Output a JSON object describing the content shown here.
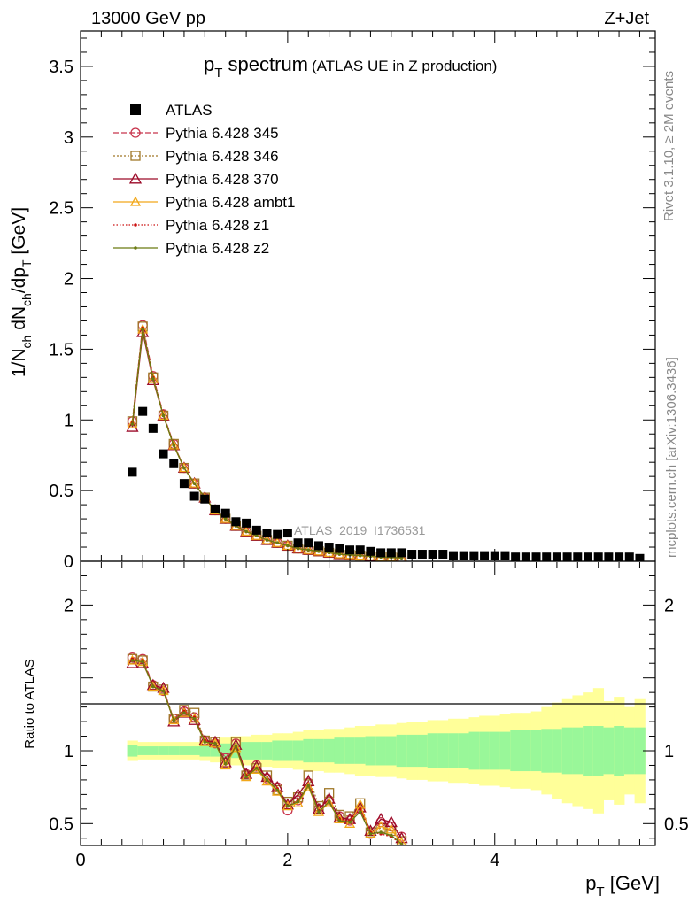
{
  "header": {
    "left": "13000 GeV pp",
    "right": "Z+Jet"
  },
  "title": {
    "main": "p",
    "main_sub": "T",
    "main_rest": " spectrum",
    "suffix": "(ATLAS UE in Z production)"
  },
  "ylabel_top": {
    "a": "1/N",
    "a_sub": "ch",
    "b": " dN",
    "b_sub": "ch",
    "c": "/dp",
    "c_sub": "T",
    "d": " [GeV]"
  },
  "ylabel_bottom": "Ratio to ATLAS",
  "xlabel": {
    "p": "p",
    "sub": "T",
    "rest": " [GeV]"
  },
  "side_text": {
    "rivet": "Rivet 3.1.10, ≥ 2M events",
    "mcplots": "mcplots.cern.ch [arXiv:1306.3436]"
  },
  "analysis_tag": "ATLAS_2019_I1736531",
  "colors": {
    "data": "#000000",
    "band_inner": "#99f799",
    "band_outer": "#ffff99",
    "pythia345": "#c8344c",
    "pythia346": "#a07828",
    "pythia370": "#9c0a28",
    "ambt1": "#f2a81a",
    "z1": "#cc1010",
    "z2": "#6b7a12"
  },
  "chart_data": [
    {
      "type": "scatter",
      "title": "p_T spectrum (ATLAS UE in Z production)",
      "xlabel": "p_T [GeV]",
      "ylabel": "1/N_ch dN_ch/dp_T [GeV]",
      "xlim": [
        0,
        5.55
      ],
      "ylim": [
        0,
        3.75
      ],
      "yticks": [
        "0",
        "0.5",
        "1",
        "1.5",
        "2",
        "2.5",
        "3",
        "3.5"
      ],
      "xticks": [
        "0",
        "2",
        "4"
      ],
      "legend_position": "top-left",
      "x": [
        0.5,
        0.6,
        0.7,
        0.8,
        0.9,
        1.0,
        1.1,
        1.2,
        1.3,
        1.4,
        1.5,
        1.6,
        1.7,
        1.8,
        1.9,
        2.0,
        2.1,
        2.2,
        2.3,
        2.4,
        2.5,
        2.6,
        2.7,
        2.8,
        2.9,
        3.0,
        3.1,
        3.2,
        3.3,
        3.4,
        3.5,
        3.6,
        3.7,
        3.8,
        3.9,
        4.0,
        4.1,
        4.2,
        4.3,
        4.4,
        4.5,
        4.6,
        4.7,
        4.8,
        4.9,
        5.0,
        5.1,
        5.2,
        5.3,
        5.4
      ],
      "series": [
        {
          "name": "ATLAS",
          "style": "data",
          "values": [
            0.63,
            1.06,
            0.94,
            0.76,
            0.69,
            0.55,
            0.46,
            0.44,
            0.37,
            0.34,
            0.28,
            0.27,
            0.22,
            0.2,
            0.19,
            0.2,
            0.13,
            0.13,
            0.11,
            0.1,
            0.09,
            0.08,
            0.08,
            0.07,
            0.06,
            0.06,
            0.06,
            0.05,
            0.05,
            0.05,
            0.05,
            0.04,
            0.04,
            0.04,
            0.04,
            0.04,
            0.04,
            0.03,
            0.03,
            0.03,
            0.03,
            0.03,
            0.03,
            0.03,
            0.03,
            0.03,
            0.03,
            0.03,
            0.03,
            0.02
          ]
        },
        {
          "name": "Pythia 6.428 345",
          "style": "p345",
          "values": [
            0.99,
            1.67,
            1.31,
            1.04,
            0.83,
            0.66,
            0.55,
            0.45,
            0.36,
            0.3,
            0.25,
            0.21,
            0.18,
            0.15,
            0.13,
            0.11,
            0.09,
            0.08,
            0.07,
            0.06,
            0.05,
            0.045,
            0.04,
            0.035,
            0.03,
            0.027,
            0.024
          ]
        },
        {
          "name": "Pythia 6.428 346",
          "style": "p346",
          "values": [
            0.99,
            1.66,
            1.3,
            1.03,
            0.83,
            0.66,
            0.55,
            0.45,
            0.36,
            0.3,
            0.25,
            0.21,
            0.18,
            0.15,
            0.13,
            0.11,
            0.09,
            0.08,
            0.07,
            0.06,
            0.05,
            0.045,
            0.04,
            0.035,
            0.03,
            0.027,
            0.024
          ]
        },
        {
          "name": "Pythia 6.428 370",
          "style": "p370",
          "values": [
            0.95,
            1.62,
            1.28,
            1.03,
            0.82,
            0.66,
            0.55,
            0.45,
            0.36,
            0.3,
            0.25,
            0.21,
            0.18,
            0.15,
            0.13,
            0.11,
            0.09,
            0.08,
            0.07,
            0.06,
            0.05,
            0.045,
            0.04,
            0.035,
            0.03,
            0.027,
            0.024
          ]
        },
        {
          "name": "Pythia 6.428 ambt1",
          "style": "ambt1",
          "values": [
            0.97,
            1.64,
            1.29,
            1.03,
            0.82,
            0.66,
            0.55,
            0.45,
            0.36,
            0.3,
            0.25,
            0.21,
            0.18,
            0.15,
            0.13,
            0.11,
            0.09,
            0.08,
            0.07,
            0.06,
            0.05,
            0.045,
            0.04,
            0.035,
            0.03,
            0.027,
            0.024
          ]
        },
        {
          "name": "Pythia 6.428 z1",
          "style": "z1",
          "values": [
            0.98,
            1.65,
            1.3,
            1.03,
            0.82,
            0.66,
            0.55,
            0.45,
            0.36,
            0.3,
            0.25,
            0.21,
            0.18,
            0.15,
            0.13,
            0.11,
            0.09,
            0.08,
            0.07,
            0.06,
            0.05,
            0.045,
            0.04,
            0.035,
            0.03,
            0.027,
            0.024
          ]
        },
        {
          "name": "Pythia 6.428 z2",
          "style": "z2",
          "values": [
            0.97,
            1.64,
            1.29,
            1.03,
            0.82,
            0.66,
            0.55,
            0.45,
            0.36,
            0.3,
            0.25,
            0.21,
            0.18,
            0.15,
            0.13,
            0.11,
            0.09,
            0.08,
            0.07,
            0.06,
            0.05,
            0.045,
            0.04,
            0.035,
            0.03,
            0.027,
            0.024
          ]
        }
      ]
    },
    {
      "type": "line",
      "ylabel": "Ratio to ATLAS",
      "xlabel": "p_T [GeV]",
      "xlim": [
        0,
        5.55
      ],
      "ylim": [
        0.35,
        2.3
      ],
      "yticks": [
        "0.5",
        "1",
        "2"
      ],
      "x": [
        0.5,
        0.6,
        0.7,
        0.8,
        0.9,
        1.0,
        1.1,
        1.2,
        1.3,
        1.4,
        1.5,
        1.6,
        1.7,
        1.8,
        1.9,
        2.0,
        2.1,
        2.2,
        2.3,
        2.4,
        2.5,
        2.6,
        2.7,
        2.8,
        2.9,
        3.0,
        3.1
      ],
      "band_inner_halfwidth": [
        0.04,
        0.03,
        0.03,
        0.03,
        0.03,
        0.03,
        0.03,
        0.04,
        0.04,
        0.05,
        0.05,
        0.06,
        0.06,
        0.06,
        0.07,
        0.07,
        0.07,
        0.08,
        0.08,
        0.08,
        0.09,
        0.09,
        0.09,
        0.1,
        0.1,
        0.1,
        0.11,
        0.11,
        0.11,
        0.12,
        0.12,
        0.12,
        0.12,
        0.13,
        0.13,
        0.13,
        0.13,
        0.14,
        0.14,
        0.14,
        0.15,
        0.15,
        0.16,
        0.16,
        0.17,
        0.17,
        0.16,
        0.17,
        0.16,
        0.16
      ],
      "band_outer_halfwidth": [
        0.07,
        0.06,
        0.06,
        0.06,
        0.06,
        0.06,
        0.06,
        0.07,
        0.08,
        0.09,
        0.1,
        0.1,
        0.11,
        0.11,
        0.12,
        0.12,
        0.13,
        0.14,
        0.14,
        0.15,
        0.15,
        0.16,
        0.17,
        0.17,
        0.18,
        0.18,
        0.19,
        0.2,
        0.2,
        0.21,
        0.21,
        0.22,
        0.22,
        0.23,
        0.24,
        0.24,
        0.25,
        0.26,
        0.26,
        0.27,
        0.3,
        0.33,
        0.36,
        0.38,
        0.4,
        0.43,
        0.34,
        0.37,
        0.3,
        0.36
      ],
      "series": [
        {
          "name": "Pythia 6.428 345",
          "style": "p345",
          "values": [
            1.64,
            1.63,
            1.45,
            1.41,
            1.22,
            1.27,
            1.23,
            1.07,
            1.05,
            0.95,
            1.05,
            0.84,
            0.9,
            0.81,
            0.75,
            0.59,
            0.66,
            0.78,
            0.6,
            0.66,
            0.55,
            0.52,
            0.6,
            0.43,
            0.51,
            0.48,
            0.41
          ]
        },
        {
          "name": "Pythia 6.428 346",
          "style": "p346",
          "values": [
            1.63,
            1.62,
            1.44,
            1.42,
            1.22,
            1.28,
            1.26,
            1.07,
            1.06,
            0.92,
            1.06,
            0.83,
            0.88,
            0.83,
            0.73,
            0.65,
            0.68,
            0.83,
            0.62,
            0.71,
            0.56,
            0.55,
            0.64,
            0.44,
            0.47,
            0.45,
            0.38
          ]
        },
        {
          "name": "Pythia 6.428 370",
          "style": "p370",
          "values": [
            1.6,
            1.6,
            1.45,
            1.43,
            1.2,
            1.26,
            1.21,
            1.07,
            1.06,
            0.92,
            1.04,
            0.84,
            0.89,
            0.82,
            0.75,
            0.63,
            0.7,
            0.79,
            0.6,
            0.67,
            0.54,
            0.53,
            0.61,
            0.45,
            0.53,
            0.51,
            0.4
          ]
        },
        {
          "name": "Pythia 6.428 ambt1",
          "style": "ambt1",
          "values": [
            1.62,
            1.61,
            1.44,
            1.41,
            1.21,
            1.26,
            1.22,
            1.06,
            1.05,
            0.9,
            1.02,
            0.82,
            0.87,
            0.79,
            0.72,
            0.62,
            0.64,
            0.75,
            0.58,
            0.64,
            0.53,
            0.5,
            0.63,
            0.43,
            0.48,
            0.46,
            0.37
          ]
        },
        {
          "name": "Pythia 6.428 z1",
          "style": "z1",
          "values": [
            1.63,
            1.62,
            1.44,
            1.41,
            1.21,
            1.27,
            1.23,
            1.07,
            1.05,
            0.91,
            1.03,
            0.83,
            0.88,
            0.8,
            0.74,
            0.62,
            0.66,
            0.76,
            0.59,
            0.65,
            0.53,
            0.52,
            0.6,
            0.44,
            0.43,
            0.41,
            0.36
          ]
        },
        {
          "name": "Pythia 6.428 z2",
          "style": "z2",
          "values": [
            1.62,
            1.61,
            1.44,
            1.41,
            1.21,
            1.26,
            1.22,
            1.06,
            1.05,
            0.91,
            1.03,
            0.82,
            0.88,
            0.8,
            0.73,
            0.62,
            0.65,
            0.76,
            0.58,
            0.65,
            0.52,
            0.51,
            0.58,
            0.43,
            0.44,
            0.42,
            0.36
          ]
        }
      ]
    }
  ]
}
